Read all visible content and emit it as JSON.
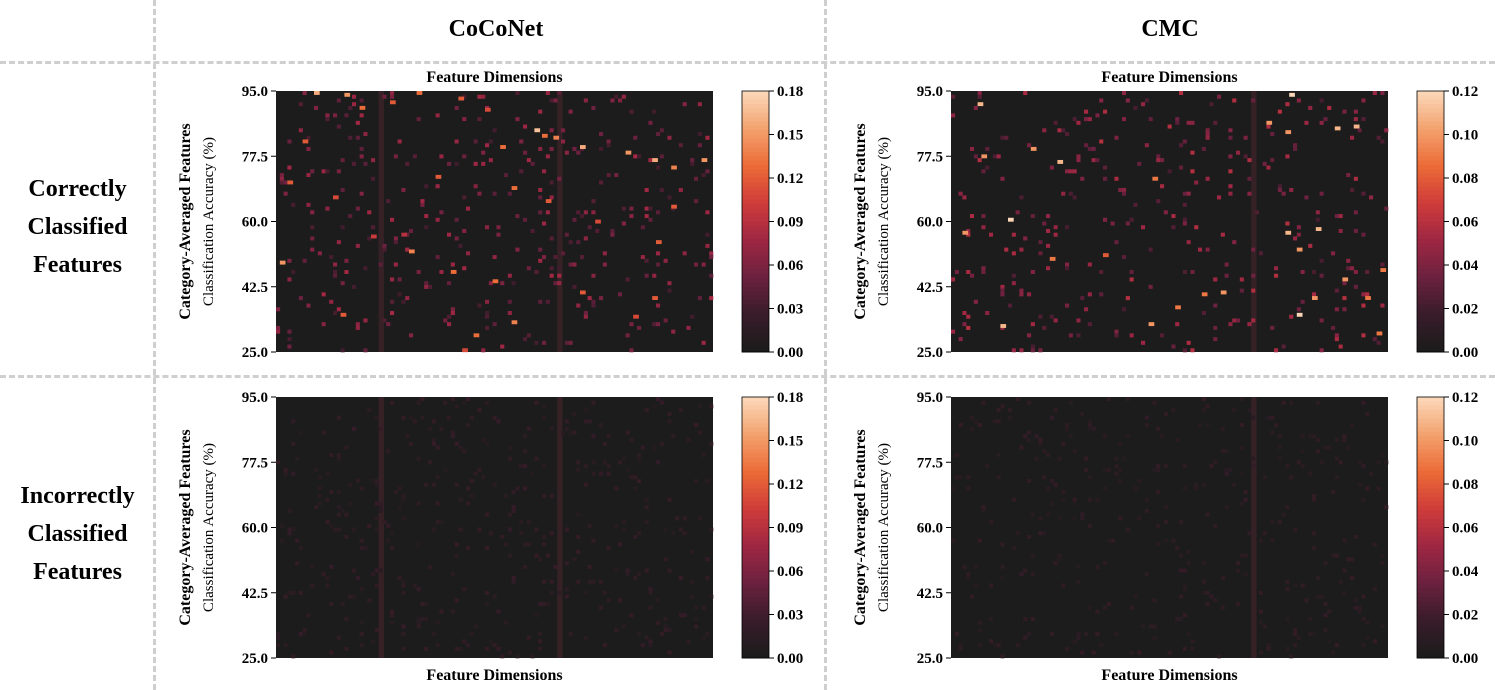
{
  "figure": {
    "columns": [
      "CoCoNet",
      "CMC"
    ],
    "rows": [
      [
        "Correctly",
        "Classified",
        "Features"
      ],
      [
        "Incorrectly",
        "Classified",
        "Features"
      ]
    ]
  },
  "colors": {
    "background": "#1c1c1c",
    "colormap": [
      "#1c1c1c",
      "#3a1c2a",
      "#6c213f",
      "#9f2743",
      "#cf3c3a",
      "#eb6a37",
      "#f3a06c",
      "#fbd7b7"
    ],
    "stripe": "#3a2228",
    "divider": "#cfcfcf"
  },
  "chart_data": [
    {
      "type": "heatmap",
      "model": "CoCoNet",
      "condition": "Correctly Classified Features",
      "xlabel": "Feature Dimensions",
      "ylabel_bold": "Category-Averaged Features",
      "ylabel": "Classification Accuracy (%)",
      "yticks": [
        "95.0",
        "77.5",
        "60.0",
        "42.5",
        "25.0"
      ],
      "ylim": [
        25.0,
        95.0
      ],
      "colorbar_ticks": [
        "0.18",
        "0.15",
        "0.12",
        "0.09",
        "0.06",
        "0.03",
        "0.00"
      ],
      "colorbar_range": [
        0.0,
        0.18
      ],
      "grid_size": [
        115,
        70
      ],
      "highlight_dims": [
        27,
        74
      ],
      "hot_cells": [
        [
          10,
          95.0,
          0.16
        ],
        [
          18,
          94.5,
          0.15
        ],
        [
          22,
          91.0,
          0.13
        ],
        [
          30,
          92.5,
          0.12
        ],
        [
          37,
          95.0,
          0.13
        ],
        [
          48,
          93.5,
          0.12
        ],
        [
          55,
          90.5,
          0.11
        ],
        [
          68,
          85.0,
          0.17
        ],
        [
          73,
          83.0,
          0.14
        ],
        [
          80,
          80.5,
          0.16
        ],
        [
          92,
          79.0,
          0.15
        ],
        [
          99,
          77.0,
          0.16
        ],
        [
          104,
          75.0,
          0.14
        ],
        [
          112,
          77.0,
          0.15
        ],
        [
          3,
          71.0,
          0.12
        ],
        [
          15,
          67.0,
          0.11
        ],
        [
          42,
          72.5,
          0.12
        ],
        [
          62,
          69.5,
          0.13
        ],
        [
          71,
          66.0,
          0.12
        ],
        [
          84,
          60.5,
          0.11
        ],
        [
          104,
          64.5,
          0.12
        ],
        [
          25,
          56.5,
          0.1
        ],
        [
          35,
          52.5,
          0.14
        ],
        [
          46,
          47.0,
          0.13
        ],
        [
          57,
          44.5,
          0.13
        ],
        [
          80,
          41.5,
          0.12
        ],
        [
          99,
          40.0,
          0.12
        ],
        [
          62,
          33.5,
          0.14
        ],
        [
          52,
          30.0,
          0.13
        ],
        [
          49,
          26.0,
          0.11
        ],
        [
          1,
          49.5,
          0.15
        ],
        [
          17,
          35.5,
          0.12
        ],
        [
          100,
          55.0,
          0.12
        ],
        [
          94,
          35.0,
          0.11
        ],
        [
          70,
          83.5,
          0.13
        ],
        [
          7,
          82.0,
          0.12
        ],
        [
          59,
          80.5,
          0.13
        ],
        [
          33,
          57.0,
          0.09
        ]
      ],
      "noise_max": 0.08,
      "noise_density": 0.045
    },
    {
      "type": "heatmap",
      "model": "CMC",
      "condition": "Correctly Classified Features",
      "xlabel": "Feature Dimensions",
      "ylabel_bold": "Category-Averaged Features",
      "ylabel": "Classification Accuracy (%)",
      "yticks": [
        "95.0",
        "77.5",
        "60.0",
        "42.5",
        "25.0"
      ],
      "ylim": [
        25.0,
        95.0
      ],
      "colorbar_ticks": [
        "0.12",
        "0.10",
        "0.08",
        "0.06",
        "0.04",
        "0.02",
        "0.00"
      ],
      "colorbar_range": [
        0.0,
        0.12
      ],
      "grid_size": [
        115,
        70
      ],
      "highlight_dims": [
        79
      ],
      "hot_cells": [
        [
          89,
          94.5,
          0.12
        ],
        [
          7,
          92.0,
          0.11
        ],
        [
          101,
          85.5,
          0.11
        ],
        [
          106,
          86.0,
          0.11
        ],
        [
          88,
          84.5,
          0.1
        ],
        [
          8,
          78.0,
          0.1
        ],
        [
          21,
          80.0,
          0.1
        ],
        [
          28,
          76.5,
          0.11
        ],
        [
          15,
          61.0,
          0.12
        ],
        [
          3,
          57.5,
          0.1
        ],
        [
          88,
          57.5,
          0.11
        ],
        [
          96,
          58.5,
          0.11
        ],
        [
          53,
          72.0,
          0.09
        ],
        [
          91,
          53.0,
          0.1
        ],
        [
          103,
          45.0,
          0.1
        ],
        [
          113,
          47.5,
          0.09
        ],
        [
          95,
          40.0,
          0.1
        ],
        [
          71,
          41.5,
          0.1
        ],
        [
          52,
          33.0,
          0.1
        ],
        [
          13,
          32.5,
          0.11
        ],
        [
          91,
          35.5,
          0.12
        ],
        [
          112,
          30.5,
          0.09
        ],
        [
          59,
          37.5,
          0.09
        ],
        [
          66,
          41.0,
          0.09
        ],
        [
          83,
          87.0,
          0.1
        ],
        [
          26,
          50.5,
          0.09
        ],
        [
          40,
          51.5,
          0.08
        ],
        [
          109,
          40.0,
          0.09
        ]
      ],
      "noise_max": 0.06,
      "noise_density": 0.04
    },
    {
      "type": "heatmap",
      "model": "CoCoNet",
      "condition": "Incorrectly Classified Features",
      "xlabel": "Feature Dimensions",
      "ylabel_bold": "Category-Averaged Features",
      "ylabel": "Classification Accuracy (%)",
      "yticks": [
        "95.0",
        "77.5",
        "60.0",
        "42.5",
        "25.0"
      ],
      "ylim": [
        25.0,
        95.0
      ],
      "colorbar_ticks": [
        "0.18",
        "0.15",
        "0.12",
        "0.09",
        "0.06",
        "0.03",
        "0.00"
      ],
      "colorbar_range": [
        0.0,
        0.18
      ],
      "grid_size": [
        115,
        70
      ],
      "highlight_dims": [
        27,
        74
      ],
      "hot_cells": [],
      "noise_max": 0.022,
      "noise_density": 0.05
    },
    {
      "type": "heatmap",
      "model": "CMC",
      "condition": "Incorrectly Classified Features",
      "xlabel": "Feature Dimensions",
      "ylabel_bold": "Category-Averaged Features",
      "ylabel": "Classification Accuracy (%)",
      "yticks": [
        "95.0",
        "77.5",
        "60.0",
        "42.5",
        "25.0"
      ],
      "ylim": [
        25.0,
        95.0
      ],
      "colorbar_ticks": [
        "0.12",
        "0.10",
        "0.08",
        "0.06",
        "0.04",
        "0.02",
        "0.00"
      ],
      "colorbar_range": [
        0.0,
        0.12
      ],
      "grid_size": [
        115,
        70
      ],
      "highlight_dims": [
        79
      ],
      "hot_cells": [],
      "noise_max": 0.014,
      "noise_density": 0.05
    }
  ]
}
